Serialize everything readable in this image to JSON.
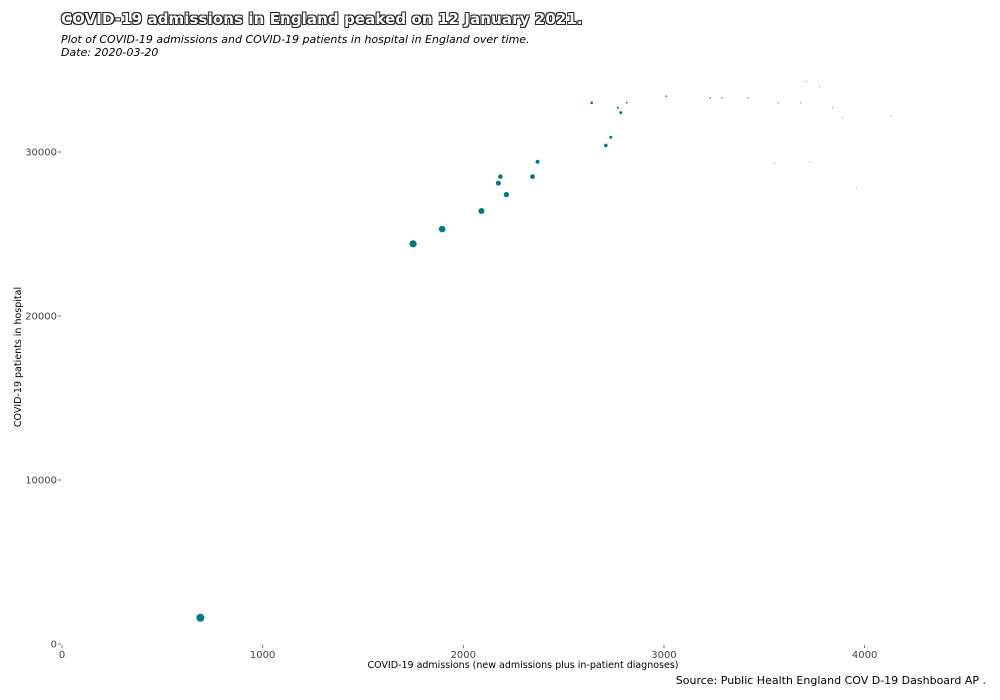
{
  "header": {
    "title": "COVID-19 admissions in England peaked on 12 January 2021.",
    "subtitle": "Plot of COVID-19 admissions and COVID-19 patients in hospital in England over time.",
    "date_label": "Date: 2020-03-20"
  },
  "footer": {
    "source": "Source: Public Health England COV D-19 Dashboard AP ."
  },
  "colors": {
    "points": "#007c80"
  },
  "chart_data": {
    "type": "scatter",
    "title": "COVID-19 admissions in England peaked on 12 January 2021.",
    "subtitle": "Plot of COVID-19 admissions and COVID-19 patients in hospital in England over time.",
    "xlabel": "COVID-19 admissions (new admissions plus in-patient diagnoses)",
    "ylabel": "COVID-19 patients in hospital",
    "xlim": [
      0,
      4600
    ],
    "ylim": [
      0,
      35000
    ],
    "x_ticks": [
      0,
      1000,
      2000,
      3000,
      4000
    ],
    "x_tick_labels": [
      "0",
      "1000",
      "2000",
      "3000",
      "4000"
    ],
    "y_ticks": [
      0,
      10000,
      20000,
      30000
    ],
    "y_tick_labels": [
      "0",
      "10000",
      "20000",
      "30000"
    ],
    "grid": false,
    "point_size_meaning": "marker size decreases over time",
    "points": [
      {
        "x": 690,
        "y": 1600,
        "size": 4.0
      },
      {
        "x": 1750,
        "y": 24400,
        "size": 3.6
      },
      {
        "x": 1895,
        "y": 25300,
        "size": 3.3
      },
      {
        "x": 2090,
        "y": 26400,
        "size": 3.0
      },
      {
        "x": 2215,
        "y": 27400,
        "size": 2.7
      },
      {
        "x": 2175,
        "y": 28100,
        "size": 2.5
      },
      {
        "x": 2185,
        "y": 28500,
        "size": 2.3
      },
      {
        "x": 2345,
        "y": 28500,
        "size": 2.4
      },
      {
        "x": 2370,
        "y": 29400,
        "size": 2.0
      },
      {
        "x": 2710,
        "y": 30400,
        "size": 1.8
      },
      {
        "x": 2735,
        "y": 30900,
        "size": 1.5
      },
      {
        "x": 2640,
        "y": 33000,
        "size": 1.3
      },
      {
        "x": 2785,
        "y": 32400,
        "size": 1.5
      },
      {
        "x": 2770,
        "y": 32700,
        "size": 1.0
      },
      {
        "x": 2815,
        "y": 33000,
        "size": 0.9
      },
      {
        "x": 3010,
        "y": 33400,
        "size": 0.8
      },
      {
        "x": 3230,
        "y": 33300,
        "size": 0.75
      },
      {
        "x": 3290,
        "y": 33300,
        "size": 0.7
      },
      {
        "x": 3420,
        "y": 33300,
        "size": 0.65
      },
      {
        "x": 3570,
        "y": 33000,
        "size": 0.6
      },
      {
        "x": 3680,
        "y": 33000,
        "size": 0.6
      },
      {
        "x": 3710,
        "y": 34300,
        "size": 0.55
      },
      {
        "x": 3775,
        "y": 34000,
        "size": 0.5
      },
      {
        "x": 3840,
        "y": 32700,
        "size": 0.5
      },
      {
        "x": 3890,
        "y": 32100,
        "size": 0.45
      },
      {
        "x": 4130,
        "y": 32200,
        "size": 0.4
      },
      {
        "x": 3550,
        "y": 29300,
        "size": 0.45
      },
      {
        "x": 3725,
        "y": 29400,
        "size": 0.45
      },
      {
        "x": 3960,
        "y": 27800,
        "size": 0.4
      }
    ]
  }
}
